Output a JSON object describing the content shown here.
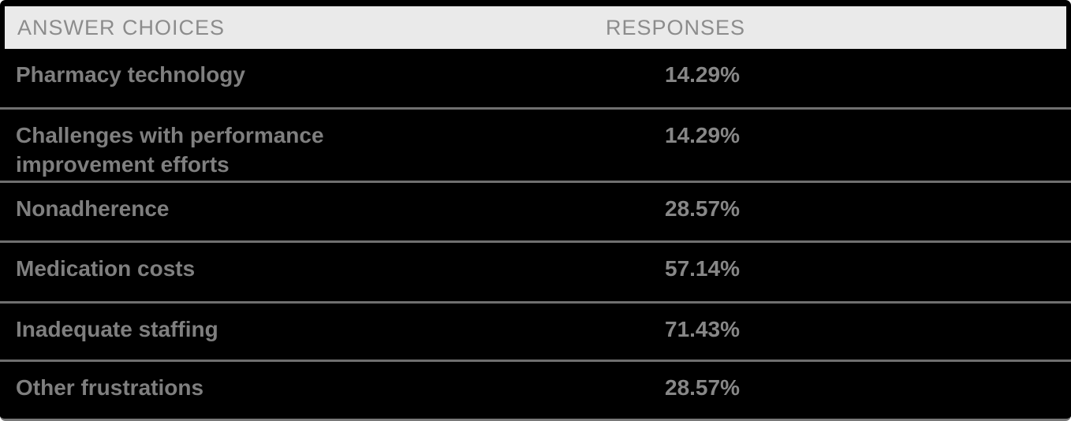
{
  "table": {
    "header": {
      "answer_choices_label": "ANSWER CHOICES",
      "responses_label": "RESPONSES"
    },
    "rows": [
      {
        "choice": "Pharmacy technology",
        "response": "14.29%"
      },
      {
        "choice": "Challenges with performance improvement efforts",
        "response": "14.29%"
      },
      {
        "choice": "Nonadherence",
        "response": "28.57%"
      },
      {
        "choice": "Medication costs",
        "response": "57.14%"
      },
      {
        "choice": "Inadequate staffing",
        "response": "71.43%"
      },
      {
        "choice": "Other frustrations",
        "response": "28.57%"
      }
    ],
    "colors": {
      "table_background": "#000000",
      "header_background": "#eaeaea",
      "header_text": "#8c8c8c",
      "row_text": "#7f7f7f",
      "value_text": "#878787",
      "divider": "#6f6f6f"
    }
  },
  "chart_data": {
    "type": "table",
    "title": "",
    "columns": [
      "ANSWER CHOICES",
      "RESPONSES"
    ],
    "categories": [
      "Pharmacy technology",
      "Challenges with performance improvement efforts",
      "Nonadherence",
      "Medication costs",
      "Inadequate staffing",
      "Other frustrations"
    ],
    "values": [
      14.29,
      14.29,
      28.57,
      57.14,
      71.43,
      28.57
    ],
    "value_format": "percent",
    "layout": "two-column results table, dark theme, gray row dividers"
  }
}
